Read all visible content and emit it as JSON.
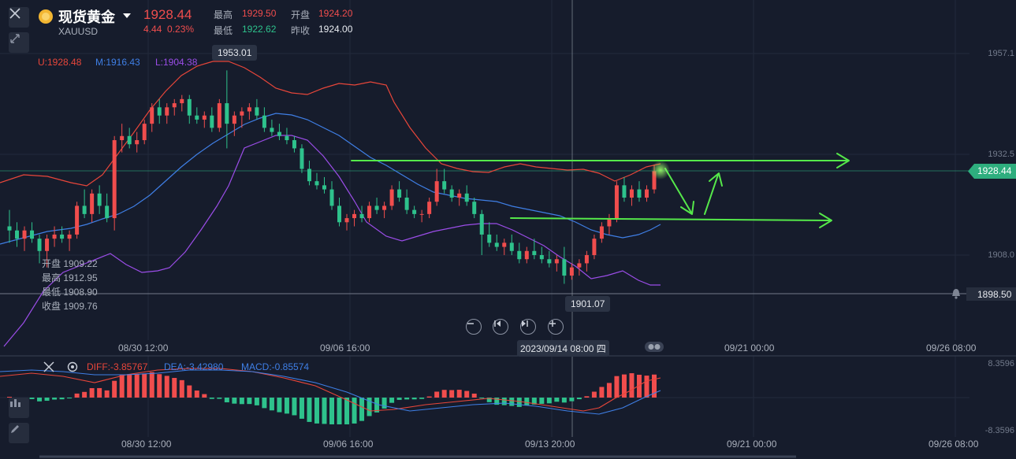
{
  "instrument": {
    "name": "现货黄金",
    "symbol": "XAUUSD",
    "price": "1928.44",
    "change": "4.44",
    "change_pct": "0.23%"
  },
  "stats": {
    "high_label": "最高",
    "high": "1929.50",
    "open_label": "开盘",
    "open": "1924.20",
    "low_label": "最低",
    "low": "1922.62",
    "prev_close_label": "昨收",
    "prev_close": "1924.00"
  },
  "bollinger": {
    "upper": "U:1928.48",
    "middle": "M:1916.43",
    "lower": "L:1904.38"
  },
  "annotations": {
    "peak_label": "1953.01",
    "trough_label": "1901.07"
  },
  "price_axis": {
    "ticks": [
      "1957.1",
      "1932.5",
      "1908.0"
    ],
    "current_price_tag": "1928.44",
    "alert_price_tag": "1898.50"
  },
  "ohlc_readout": {
    "open": "开盘 1909.22",
    "high": "最高 1912.95",
    "low": "最低 1908.90",
    "close": "收盘 1909.76"
  },
  "time_axis_main": [
    "08/30 12:00",
    "09/06 16:00",
    "09/21 00:00",
    "09/26 08:00"
  ],
  "crosshair_time": "2023/09/14 08:00 四",
  "macd": {
    "diff": "DIFF:-3.85767",
    "dea": "DEA:-3.42980",
    "macd": "MACD:-0.85574",
    "axis_top": "8.3596",
    "axis_bottom": "-8.3596"
  },
  "time_axis_macd": [
    "08/30 12:00",
    "09/06 16:00",
    "09/13 20:00",
    "09/21 00:00",
    "09/26 08:00"
  ],
  "icons": [
    "close-icon",
    "collapse-icon",
    "gold-coin-icon",
    "chevron-down-icon",
    "zoom-out-icon",
    "step-back-icon",
    "step-forward-icon",
    "zoom-in-icon",
    "bell-icon",
    "settings-icon",
    "candles-icon",
    "pencil-icon"
  ],
  "colors": {
    "up": "#f04d4d",
    "down": "#2ec28c",
    "upper_band": "#e8463a",
    "middle_band": "#3f7fe6",
    "lower_band": "#9b4de8",
    "annotation": "#55e84a",
    "background": "#161c2c"
  },
  "chart_data": {
    "type": "candlestick",
    "instrument": "XAUUSD",
    "candles": [
      {
        "o": 1915,
        "h": 1919,
        "l": 1911,
        "c": 1914
      },
      {
        "o": 1914,
        "h": 1916,
        "l": 1910,
        "c": 1912
      },
      {
        "o": 1912,
        "h": 1915,
        "l": 1909,
        "c": 1914
      },
      {
        "o": 1914,
        "h": 1916,
        "l": 1911,
        "c": 1912
      },
      {
        "o": 1912,
        "h": 1913,
        "l": 1906,
        "c": 1909
      },
      {
        "o": 1909,
        "h": 1913,
        "l": 1905,
        "c": 1912
      },
      {
        "o": 1912,
        "h": 1915,
        "l": 1910,
        "c": 1913
      },
      {
        "o": 1913,
        "h": 1915,
        "l": 1911,
        "c": 1912
      },
      {
        "o": 1912,
        "h": 1914,
        "l": 1909,
        "c": 1913
      },
      {
        "o": 1913,
        "h": 1921,
        "l": 1912,
        "c": 1920
      },
      {
        "o": 1920,
        "h": 1924,
        "l": 1917,
        "c": 1918
      },
      {
        "o": 1918,
        "h": 1924,
        "l": 1916,
        "c": 1923
      },
      {
        "o": 1923,
        "h": 1925,
        "l": 1918,
        "c": 1920
      },
      {
        "o": 1920,
        "h": 1923,
        "l": 1916,
        "c": 1917
      },
      {
        "o": 1917,
        "h": 1937,
        "l": 1914,
        "c": 1936
      },
      {
        "o": 1936,
        "h": 1940,
        "l": 1933,
        "c": 1937
      },
      {
        "o": 1937,
        "h": 1939,
        "l": 1934,
        "c": 1935
      },
      {
        "o": 1935,
        "h": 1938,
        "l": 1933,
        "c": 1936
      },
      {
        "o": 1936,
        "h": 1941,
        "l": 1935,
        "c": 1940
      },
      {
        "o": 1940,
        "h": 1945,
        "l": 1938,
        "c": 1944
      },
      {
        "o": 1944,
        "h": 1946,
        "l": 1940,
        "c": 1942
      },
      {
        "o": 1942,
        "h": 1945,
        "l": 1940,
        "c": 1944
      },
      {
        "o": 1944,
        "h": 1946,
        "l": 1942,
        "c": 1945
      },
      {
        "o": 1945,
        "h": 1947,
        "l": 1943,
        "c": 1946
      },
      {
        "o": 1946,
        "h": 1947,
        "l": 1940,
        "c": 1942
      },
      {
        "o": 1942,
        "h": 1944,
        "l": 1940,
        "c": 1941
      },
      {
        "o": 1941,
        "h": 1943,
        "l": 1939,
        "c": 1942
      },
      {
        "o": 1942,
        "h": 1944,
        "l": 1938,
        "c": 1939
      },
      {
        "o": 1939,
        "h": 1946,
        "l": 1938,
        "c": 1945
      },
      {
        "o": 1945,
        "h": 1953,
        "l": 1934,
        "c": 1940
      },
      {
        "o": 1940,
        "h": 1943,
        "l": 1937,
        "c": 1942
      },
      {
        "o": 1942,
        "h": 1944,
        "l": 1939,
        "c": 1943
      },
      {
        "o": 1943,
        "h": 1945,
        "l": 1941,
        "c": 1944
      },
      {
        "o": 1944,
        "h": 1946,
        "l": 1941,
        "c": 1942
      },
      {
        "o": 1942,
        "h": 1944,
        "l": 1938,
        "c": 1939
      },
      {
        "o": 1939,
        "h": 1941,
        "l": 1937,
        "c": 1938
      },
      {
        "o": 1938,
        "h": 1940,
        "l": 1936,
        "c": 1937
      },
      {
        "o": 1937,
        "h": 1939,
        "l": 1935,
        "c": 1936
      },
      {
        "o": 1936,
        "h": 1937,
        "l": 1933,
        "c": 1934
      },
      {
        "o": 1934,
        "h": 1935,
        "l": 1928,
        "c": 1929
      },
      {
        "o": 1929,
        "h": 1931,
        "l": 1925,
        "c": 1926
      },
      {
        "o": 1926,
        "h": 1928,
        "l": 1924,
        "c": 1925
      },
      {
        "o": 1925,
        "h": 1927,
        "l": 1923,
        "c": 1924
      },
      {
        "o": 1924,
        "h": 1926,
        "l": 1919,
        "c": 1920
      },
      {
        "o": 1920,
        "h": 1922,
        "l": 1915,
        "c": 1916
      },
      {
        "o": 1916,
        "h": 1918,
        "l": 1914,
        "c": 1917
      },
      {
        "o": 1917,
        "h": 1919,
        "l": 1915,
        "c": 1918
      },
      {
        "o": 1918,
        "h": 1920,
        "l": 1916,
        "c": 1917
      },
      {
        "o": 1917,
        "h": 1921,
        "l": 1916,
        "c": 1920
      },
      {
        "o": 1920,
        "h": 1922,
        "l": 1918,
        "c": 1919
      },
      {
        "o": 1919,
        "h": 1921,
        "l": 1917,
        "c": 1920
      },
      {
        "o": 1920,
        "h": 1925,
        "l": 1919,
        "c": 1924
      },
      {
        "o": 1924,
        "h": 1926,
        "l": 1921,
        "c": 1922
      },
      {
        "o": 1922,
        "h": 1924,
        "l": 1918,
        "c": 1919
      },
      {
        "o": 1919,
        "h": 1920,
        "l": 1917,
        "c": 1918
      },
      {
        "o": 1918,
        "h": 1919,
        "l": 1916,
        "c": 1918
      },
      {
        "o": 1918,
        "h": 1922,
        "l": 1917,
        "c": 1921
      },
      {
        "o": 1921,
        "h": 1929,
        "l": 1920,
        "c": 1926
      },
      {
        "o": 1926,
        "h": 1929,
        "l": 1923,
        "c": 1924
      },
      {
        "o": 1924,
        "h": 1925,
        "l": 1921,
        "c": 1922
      },
      {
        "o": 1922,
        "h": 1924,
        "l": 1920,
        "c": 1923
      },
      {
        "o": 1923,
        "h": 1925,
        "l": 1920,
        "c": 1921
      },
      {
        "o": 1921,
        "h": 1922,
        "l": 1917,
        "c": 1918
      },
      {
        "o": 1918,
        "h": 1919,
        "l": 1908,
        "c": 1913
      },
      {
        "o": 1913,
        "h": 1916,
        "l": 1910,
        "c": 1911
      },
      {
        "o": 1911,
        "h": 1913,
        "l": 1909,
        "c": 1910
      },
      {
        "o": 1910,
        "h": 1912,
        "l": 1908,
        "c": 1911
      },
      {
        "o": 1911,
        "h": 1913,
        "l": 1908,
        "c": 1909
      },
      {
        "o": 1909,
        "h": 1911,
        "l": 1906,
        "c": 1907
      },
      {
        "o": 1907,
        "h": 1910,
        "l": 1906,
        "c": 1909
      },
      {
        "o": 1909,
        "h": 1912,
        "l": 1907,
        "c": 1908
      },
      {
        "o": 1908,
        "h": 1910,
        "l": 1906,
        "c": 1907
      },
      {
        "o": 1907,
        "h": 1909,
        "l": 1905,
        "c": 1906
      },
      {
        "o": 1906,
        "h": 1908,
        "l": 1904,
        "c": 1907
      },
      {
        "o": 1907,
        "h": 1910,
        "l": 1901,
        "c": 1903
      },
      {
        "o": 1903,
        "h": 1906,
        "l": 1902,
        "c": 1905
      },
      {
        "o": 1905,
        "h": 1907,
        "l": 1903,
        "c": 1906
      },
      {
        "o": 1906,
        "h": 1909,
        "l": 1904,
        "c": 1908
      },
      {
        "o": 1908,
        "h": 1913,
        "l": 1907,
        "c": 1912
      },
      {
        "o": 1912,
        "h": 1916,
        "l": 1911,
        "c": 1915
      },
      {
        "o": 1915,
        "h": 1918,
        "l": 1913,
        "c": 1917
      },
      {
        "o": 1917,
        "h": 1926,
        "l": 1916,
        "c": 1925
      },
      {
        "o": 1925,
        "h": 1927,
        "l": 1921,
        "c": 1922
      },
      {
        "o": 1922,
        "h": 1925,
        "l": 1920,
        "c": 1924
      },
      {
        "o": 1924,
        "h": 1926,
        "l": 1921,
        "c": 1922
      },
      {
        "o": 1922,
        "h": 1925,
        "l": 1921,
        "c": 1924
      },
      {
        "o": 1924,
        "h": 1930,
        "l": 1923,
        "c": 1928.44
      }
    ],
    "y_range": [
      1895,
      1963
    ],
    "macd_range": [
      -8.3596,
      8.3596
    ]
  }
}
